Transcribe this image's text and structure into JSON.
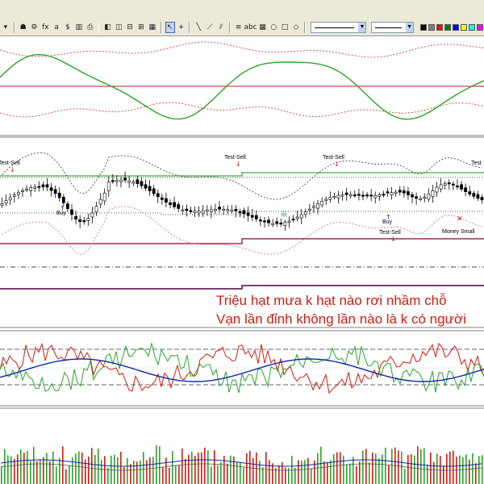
{
  "toolbar": {
    "buttons": [
      {
        "name": "dropdown-arrow-icon",
        "glyph": "▾"
      },
      {
        "name": "sep"
      },
      {
        "name": "stamp-icon",
        "glyph": "☗"
      },
      {
        "name": "tools-icon",
        "glyph": "⚙"
      },
      {
        "name": "fx-icon",
        "glyph": "fx"
      },
      {
        "name": "variables-icon",
        "glyph": "a"
      },
      {
        "name": "dollar-icon",
        "glyph": "$"
      },
      {
        "name": "chart-icon",
        "glyph": "▥"
      },
      {
        "name": "print-icon",
        "glyph": "⎙"
      },
      {
        "name": "sep"
      },
      {
        "name": "layers-icon",
        "glyph": "◧"
      },
      {
        "name": "split-vertical-icon",
        "glyph": "◫"
      },
      {
        "name": "split-horizontal-icon",
        "glyph": "⊟"
      },
      {
        "name": "grid-2-icon",
        "glyph": "⊞"
      },
      {
        "name": "grid-3-icon",
        "glyph": "▦"
      },
      {
        "name": "sep"
      },
      {
        "name": "pointer-icon",
        "glyph": "↖",
        "active": true
      },
      {
        "name": "crosshair-icon",
        "glyph": "+"
      },
      {
        "name": "sep"
      },
      {
        "name": "line-icon",
        "glyph": "╲"
      },
      {
        "name": "trendline-icon",
        "glyph": "⟋"
      },
      {
        "name": "channel-icon",
        "glyph": "⫽"
      },
      {
        "name": "sep"
      },
      {
        "name": "fibonacci-icon",
        "glyph": "≡"
      },
      {
        "name": "text-abc-icon",
        "glyph": "abc"
      },
      {
        "name": "table-icon",
        "glyph": "▦"
      },
      {
        "name": "ellipse-icon",
        "glyph": "○"
      },
      {
        "name": "rectangle-icon",
        "glyph": "□"
      },
      {
        "name": "cursor-sel-icon",
        "glyph": "◇"
      },
      {
        "name": "sep"
      }
    ],
    "line_style_select": {
      "value": "solid"
    },
    "line_width_select": {
      "value": "thin"
    },
    "colors": [
      "#000000",
      "#808080",
      "#ff0000",
      "#008000",
      "#0000ff",
      "#ffff00",
      "#00ffff",
      "#ff00ff"
    ]
  },
  "panes": {
    "price": {
      "signals": [
        {
          "label": "Test-Sell",
          "type": "sell"
        },
        {
          "label": "Buy",
          "type": "buy"
        },
        {
          "label": "Test-Sell",
          "type": "sell"
        },
        {
          "label": "Test-Sell",
          "type": "sell"
        },
        {
          "label": "Test-Sell",
          "type": "sell"
        },
        {
          "label": "Buy",
          "type": "buy"
        },
        {
          "label": "Money Small",
          "type": "info"
        },
        {
          "label": "Test",
          "type": "sell"
        }
      ]
    }
  },
  "overlay": {
    "line1": "Triệu hạt mưa k hạt nào rơi nhầm chỗ",
    "line2": "Vạn lần đỉnh không lần nào là k có người"
  },
  "colors": {
    "oscillator": "#2aa52a",
    "candle_up": "#ffffff",
    "candle_down": "#000000",
    "support": "#0b9b0b",
    "resistance": "#8b0026",
    "rsi_red": "#d81a0f",
    "rsi_blue": "#0a2aa8",
    "text_overlay": "#d81a0f"
  }
}
